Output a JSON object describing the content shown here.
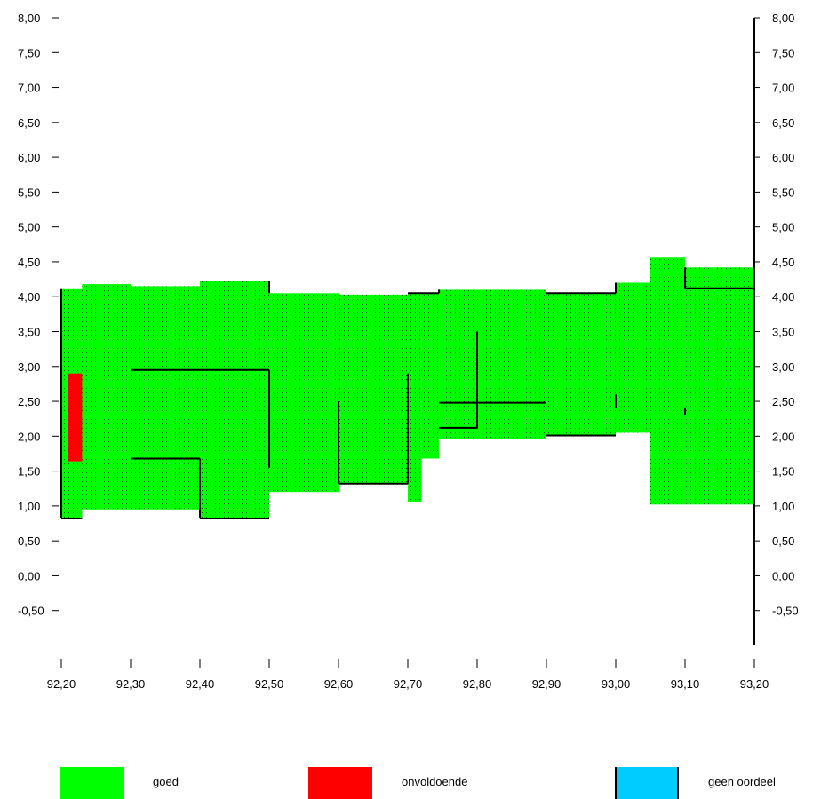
{
  "chart_data": {
    "type": "area",
    "xlim": [
      92.2,
      93.2
    ],
    "ylim": [
      -1.0,
      8.0
    ],
    "x_ticks": [
      "92,20",
      "92,30",
      "92,40",
      "92,50",
      "92,60",
      "92,70",
      "92,80",
      "92,90",
      "93,00",
      "93,10",
      "93,20"
    ],
    "x_tick_values": [
      92.2,
      92.3,
      92.4,
      92.5,
      92.6,
      92.7,
      92.8,
      92.9,
      93.0,
      93.1,
      93.2
    ],
    "y_ticks_left": [
      "8,00",
      "7,50",
      "7,00",
      "6,50",
      "6,00",
      "5,50",
      "5,00",
      "4,50",
      "4,00",
      "3,50",
      "3,00",
      "2,50",
      "2,00",
      "1,50",
      "1,00",
      "0,50",
      "0,00",
      "-0,50"
    ],
    "y_ticks_right": [
      "8,00",
      "7,50",
      "7,00",
      "6,50",
      "6,00",
      "5,50",
      "5,00",
      "4,50",
      "4,00",
      "3,50",
      "3,00",
      "2,50",
      "2,00",
      "1,50",
      "1,00",
      "0,50",
      "0,00",
      "-0,50"
    ],
    "y_tick_values": [
      8.0,
      7.5,
      7.0,
      6.5,
      6.0,
      5.5,
      5.0,
      4.5,
      4.0,
      3.5,
      3.0,
      2.5,
      2.0,
      1.5,
      1.0,
      0.5,
      0.0,
      -0.5
    ],
    "pattern": "dotted",
    "areas": [
      {
        "status": "goed",
        "x0": 92.2,
        "x1": 92.23,
        "y0": 0.82,
        "y1": 4.12
      },
      {
        "status": "goed",
        "x0": 92.23,
        "x1": 92.3,
        "y0": 0.95,
        "y1": 4.18
      },
      {
        "status": "goed",
        "x0": 92.3,
        "x1": 92.4,
        "y0": 0.95,
        "y1": 4.15
      },
      {
        "status": "goed",
        "x0": 92.4,
        "x1": 92.5,
        "y0": 0.82,
        "y1": 4.22
      },
      {
        "status": "goed",
        "x0": 92.5,
        "x1": 92.6,
        "y0": 1.2,
        "y1": 4.05
      },
      {
        "status": "goed",
        "x0": 92.6,
        "x1": 92.7,
        "y0": 1.32,
        "y1": 4.03
      },
      {
        "status": "goed",
        "x0": 92.7,
        "x1": 92.72,
        "y0": 1.06,
        "y1": 4.05
      },
      {
        "status": "goed",
        "x0": 92.72,
        "x1": 92.745,
        "y0": 1.68,
        "y1": 4.05
      },
      {
        "status": "goed",
        "x0": 92.745,
        "x1": 92.9,
        "y0": 1.96,
        "y1": 4.1
      },
      {
        "status": "goed",
        "x0": 92.9,
        "x1": 93.0,
        "y0": 2.01,
        "y1": 4.05
      },
      {
        "status": "goed",
        "x0": 93.0,
        "x1": 93.05,
        "y0": 2.05,
        "y1": 4.2
      },
      {
        "status": "goed",
        "x0": 93.05,
        "x1": 93.1,
        "y0": 1.02,
        "y1": 4.56
      },
      {
        "status": "goed",
        "x0": 93.1,
        "x1": 93.2,
        "y0": 1.02,
        "y1": 4.42
      },
      {
        "status": "onvoldoende",
        "x0": 92.21,
        "x1": 92.23,
        "y0": 1.64,
        "y1": 2.9
      }
    ],
    "legend": [
      {
        "label": "goed",
        "color": "#00ff00"
      },
      {
        "label": "onvoldoende",
        "color": "#ff0000"
      },
      {
        "label": "geen oordeel",
        "color": "#00ccff"
      }
    ],
    "colors": {
      "goed": "#00ff00",
      "onvoldoende": "#ff0000",
      "geen_oordeel": "#00ccff",
      "axis": "#000000",
      "dots": "#006400"
    }
  }
}
